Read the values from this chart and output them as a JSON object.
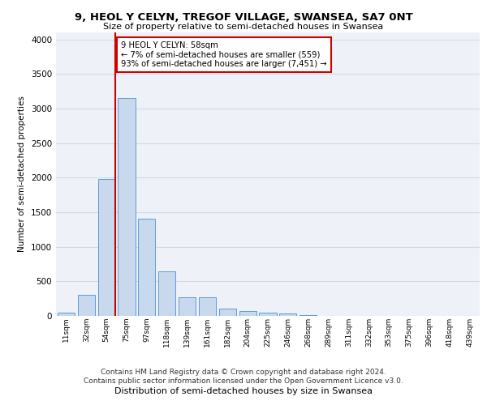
{
  "title1": "9, HEOL Y CELYN, TREGOF VILLAGE, SWANSEA, SA7 0NT",
  "title2": "Size of property relative to semi-detached houses in Swansea",
  "xlabel": "Distribution of semi-detached houses by size in Swansea",
  "ylabel": "Number of semi-detached properties",
  "categories": [
    "11sqm",
    "32sqm",
    "54sqm",
    "75sqm",
    "97sqm",
    "118sqm",
    "139sqm",
    "161sqm",
    "182sqm",
    "204sqm",
    "225sqm",
    "246sqm",
    "268sqm",
    "289sqm",
    "311sqm",
    "332sqm",
    "353sqm",
    "375sqm",
    "396sqm",
    "418sqm",
    "439sqm"
  ],
  "values": [
    50,
    300,
    1980,
    3150,
    1400,
    650,
    270,
    270,
    110,
    75,
    50,
    30,
    15,
    5,
    2,
    1,
    1,
    1,
    1,
    1,
    1
  ],
  "bar_color": "#c8d9ed",
  "bar_edge_color": "#5b9bd5",
  "property_bin_index": 2,
  "annotation_title": "9 HEOL Y CELYN: 58sqm",
  "annotation_line1": "← 7% of semi-detached houses are smaller (559)",
  "annotation_line2": "93% of semi-detached houses are larger (7,451) →",
  "redline_color": "#cc0000",
  "annotation_box_color": "#ffffff",
  "annotation_box_edge": "#cc0000",
  "grid_color": "#d0d8e8",
  "background_color": "#eef2f8",
  "footer1": "Contains HM Land Registry data © Crown copyright and database right 2024.",
  "footer2": "Contains public sector information licensed under the Open Government Licence v3.0.",
  "ylim": [
    0,
    4100
  ],
  "yticks": [
    0,
    500,
    1000,
    1500,
    2000,
    2500,
    3000,
    3500,
    4000
  ]
}
